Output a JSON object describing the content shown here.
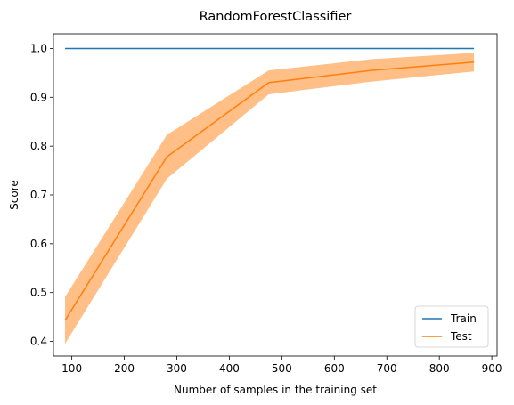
{
  "chart_data": {
    "type": "line",
    "title": "RandomForestClassifier",
    "xlabel": "Number of samples in the training set",
    "ylabel": "Score",
    "xlim": [
      65,
      910
    ],
    "ylim": [
      0.37,
      1.03
    ],
    "xticks": [
      100,
      200,
      300,
      400,
      500,
      600,
      700,
      800,
      900
    ],
    "yticks": [
      0.4,
      0.5,
      0.6,
      0.7,
      0.8,
      0.9,
      1.0
    ],
    "xtick_labels": [
      "100",
      "200",
      "300",
      "400",
      "500",
      "600",
      "700",
      "800",
      "900"
    ],
    "ytick_labels": [
      "0.4",
      "0.5",
      "0.6",
      "0.7",
      "0.8",
      "0.9",
      "1.0"
    ],
    "legend_position": "lower-right",
    "grid": false,
    "x": [
      87,
      281,
      475,
      670,
      866
    ],
    "series": [
      {
        "name": "Train",
        "color": "#1f77b4",
        "values": [
          1.0,
          1.0,
          1.0,
          1.0,
          1.0
        ]
      },
      {
        "name": "Test",
        "color": "#ff7f0e",
        "values": [
          0.443,
          0.778,
          0.93,
          0.955,
          0.972
        ],
        "band_lower": [
          0.395,
          0.733,
          0.906,
          0.932,
          0.953
        ],
        "band_upper": [
          0.491,
          0.823,
          0.955,
          0.978,
          0.991
        ],
        "band_color": "#ffbf86"
      }
    ]
  }
}
